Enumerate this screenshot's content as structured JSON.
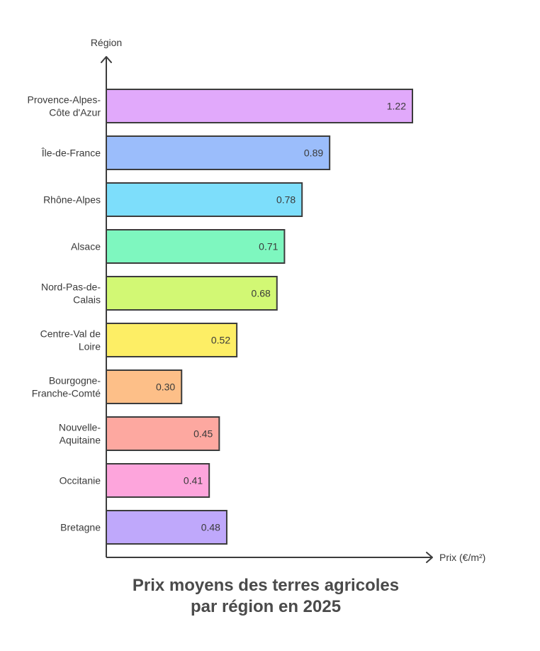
{
  "chart_data": {
    "type": "bar",
    "orientation": "horizontal",
    "title_lines": [
      "Prix moyens des terres agricoles",
      "par région en 2025"
    ],
    "xlabel": "Prix (€/m²)",
    "ylabel": "Région",
    "xlim": [
      0,
      1.22
    ],
    "grid": false,
    "legend": "none",
    "categories": [
      [
        "Provence-Alpes-",
        "Côte d'Azur"
      ],
      [
        "Île-de-France"
      ],
      [
        "Rhône-Alpes"
      ],
      [
        "Alsace"
      ],
      [
        "Nord-Pas-de-",
        "Calais"
      ],
      [
        "Centre-Val de",
        "Loire"
      ],
      [
        "Bourgogne-",
        "Franche-Comté"
      ],
      [
        "Nouvelle-",
        "Aquitaine"
      ],
      [
        "Occitanie"
      ],
      [
        "Bretagne"
      ]
    ],
    "values": [
      1.22,
      0.89,
      0.78,
      0.71,
      0.68,
      0.52,
      0.3,
      0.45,
      0.41,
      0.48
    ],
    "value_labels": [
      "1.22",
      "0.89",
      "0.78",
      "0.71",
      "0.68",
      "0.52",
      "0.30",
      "0.45",
      "0.41",
      "0.48"
    ],
    "colors": [
      "#e1a9fb",
      "#9bbdfb",
      "#7ddefb",
      "#7ef7bf",
      "#d2f874",
      "#fdee65",
      "#fdbf88",
      "#fda8a0",
      "#fda5dc",
      "#bfa8fb"
    ],
    "stroke_color": "#3c3c3c",
    "axis_color": "#3c3c3c",
    "text_color": "#3a3a3a"
  }
}
